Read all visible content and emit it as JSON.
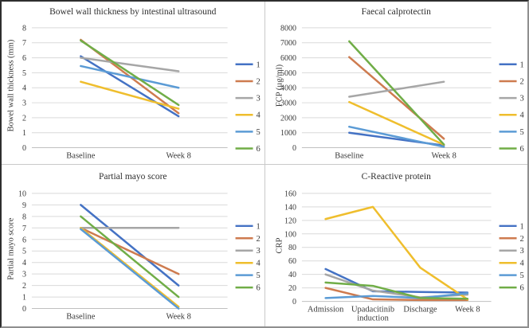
{
  "figure": {
    "background": "#ffffff",
    "border_color": "#2e2e2e",
    "divider_color": "#c9c9c9",
    "text_color": "#383838",
    "gridline_color": "#d9d9d9",
    "axisline_color": "#bfbfbf",
    "series_colors": [
      "#4472C4",
      "#CE7B4F",
      "#A6A6A6",
      "#EFBE2D",
      "#5B9BD5",
      "#70AD47"
    ]
  },
  "chart_data": [
    {
      "type": "line",
      "title": "Bowel wall thickness by intestinal ultrasound",
      "ylabel": "Bowel wall thickness (mm)",
      "xlabel": "",
      "ylim": [
        0,
        8
      ],
      "ytick_step": 1,
      "grid": true,
      "legend_position": "right",
      "categories": [
        "Baseline",
        "Week 8"
      ],
      "series": [
        {
          "name": "1",
          "values": [
            6.1,
            2.1
          ]
        },
        {
          "name": "2",
          "values": [
            7.2,
            2.3
          ]
        },
        {
          "name": "3",
          "values": [
            6.0,
            5.1
          ]
        },
        {
          "name": "4",
          "values": [
            4.4,
            2.6
          ]
        },
        {
          "name": "5",
          "values": [
            5.45,
            4.0
          ]
        },
        {
          "name": "6",
          "values": [
            7.15,
            2.85
          ]
        }
      ]
    },
    {
      "type": "line",
      "title": "Faecal calprotectin",
      "ylabel": "FCP (µg/ml)",
      "xlabel": "",
      "ylim": [
        0,
        8000
      ],
      "ytick_step": 1000,
      "grid": true,
      "legend_position": "right",
      "categories": [
        "Baseline",
        "Week 8"
      ],
      "series": [
        {
          "name": "1",
          "values": [
            1000,
            150
          ]
        },
        {
          "name": "2",
          "values": [
            6050,
            600
          ]
        },
        {
          "name": "3",
          "values": [
            3400,
            4400
          ]
        },
        {
          "name": "4",
          "values": [
            3050,
            200
          ]
        },
        {
          "name": "5",
          "values": [
            1400,
            60
          ]
        },
        {
          "name": "6",
          "values": [
            7100,
            220
          ]
        }
      ]
    },
    {
      "type": "line",
      "title": "Partial mayo score",
      "ylabel": "Partial mayo score",
      "xlabel": "",
      "ylim": [
        0,
        10
      ],
      "ytick_step": 1,
      "grid": true,
      "legend_position": "right",
      "categories": [
        "Baseline",
        "Week 8"
      ],
      "series": [
        {
          "name": "1",
          "values": [
            9,
            2
          ]
        },
        {
          "name": "2",
          "values": [
            7,
            3
          ]
        },
        {
          "name": "3",
          "values": [
            7,
            7
          ]
        },
        {
          "name": "4",
          "values": [
            7,
            0.15
          ]
        },
        {
          "name": "5",
          "values": [
            6.9,
            0
          ]
        },
        {
          "name": "6",
          "values": [
            8,
            1
          ]
        }
      ]
    },
    {
      "type": "line",
      "title": "C-Reactive protein",
      "ylabel": "CRP",
      "xlabel": "",
      "ylim": [
        0,
        160
      ],
      "ytick_step": 20,
      "grid": true,
      "legend_position": "right",
      "categories": [
        "Admission",
        "Upadacitinib induction",
        "Discharge",
        "Week 8"
      ],
      "series": [
        {
          "name": "1",
          "values": [
            48,
            15,
            14,
            13
          ]
        },
        {
          "name": "2",
          "values": [
            20,
            3,
            2,
            2
          ]
        },
        {
          "name": "3",
          "values": [
            40,
            16,
            6,
            10
          ]
        },
        {
          "name": "4",
          "values": [
            122,
            140,
            50,
            3
          ]
        },
        {
          "name": "5",
          "values": [
            5,
            8,
            5,
            12
          ]
        },
        {
          "name": "6",
          "values": [
            28,
            23,
            5,
            4
          ]
        }
      ]
    }
  ]
}
